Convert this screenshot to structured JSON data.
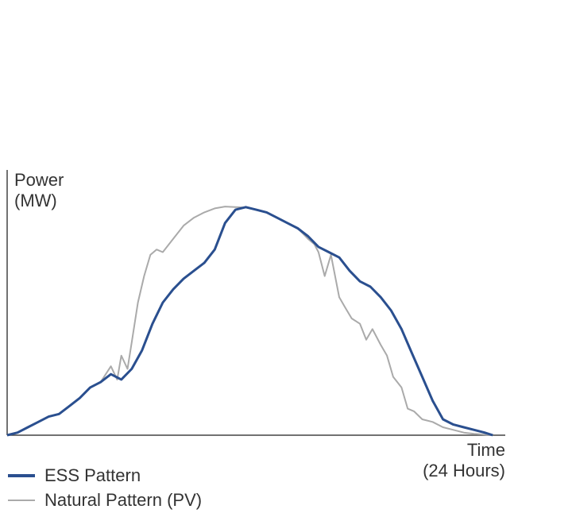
{
  "chart_data": {
    "type": "line",
    "ylabel_line1": "Power",
    "ylabel_line2": "(MW)",
    "xlabel_line1": "Time",
    "xlabel_line2": "(24 Hours)",
    "xlim": [
      0,
      24
    ],
    "ylim": [
      0,
      1
    ],
    "grid": false,
    "legend_position": "bottom-left",
    "series": [
      {
        "name": "ESS Pattern",
        "color": "#2a4f8f",
        "x": [
          0,
          0.5,
          1,
          1.5,
          2,
          2.5,
          3,
          3.5,
          4,
          4.5,
          5,
          5.5,
          6,
          6.5,
          7,
          7.5,
          8,
          8.5,
          9,
          9.5,
          10,
          10.5,
          11,
          11.5,
          12,
          12.5,
          13,
          13.5,
          14,
          14.5,
          15,
          15.5,
          16,
          16.5,
          17,
          17.5,
          18,
          18.5,
          19,
          19.5,
          20,
          20.5,
          21,
          21.5,
          22,
          22.5,
          23,
          23.4
        ],
        "y": [
          0.0,
          0.01,
          0.03,
          0.05,
          0.07,
          0.08,
          0.11,
          0.14,
          0.18,
          0.2,
          0.23,
          0.21,
          0.25,
          0.32,
          0.42,
          0.5,
          0.55,
          0.59,
          0.62,
          0.65,
          0.7,
          0.8,
          0.85,
          0.86,
          0.85,
          0.84,
          0.82,
          0.8,
          0.78,
          0.75,
          0.71,
          0.69,
          0.67,
          0.62,
          0.58,
          0.56,
          0.52,
          0.47,
          0.4,
          0.31,
          0.22,
          0.13,
          0.06,
          0.04,
          0.03,
          0.02,
          0.01,
          0.0
        ]
      },
      {
        "name": "Natural Pattern (PV)",
        "color": "#aaaaaa",
        "x": [
          0,
          0.5,
          1,
          1.5,
          2,
          2.5,
          3,
          3.5,
          4,
          4.5,
          5,
          5.3,
          5.5,
          5.8,
          6,
          6.3,
          6.6,
          6.9,
          7.2,
          7.5,
          8,
          8.5,
          9,
          9.5,
          10,
          10.5,
          11,
          11.5,
          12,
          12.5,
          13,
          13.5,
          14,
          14.5,
          14.8,
          15,
          15.3,
          15.6,
          16,
          16.3,
          16.6,
          17,
          17.3,
          17.6,
          18,
          18.3,
          18.6,
          19,
          19.3,
          19.6,
          20,
          20.5,
          21,
          21.5,
          22,
          22.5,
          23,
          23.4
        ],
        "y": [
          0.0,
          0.01,
          0.03,
          0.05,
          0.07,
          0.08,
          0.11,
          0.14,
          0.18,
          0.2,
          0.26,
          0.21,
          0.3,
          0.25,
          0.35,
          0.5,
          0.6,
          0.68,
          0.7,
          0.69,
          0.74,
          0.79,
          0.82,
          0.84,
          0.855,
          0.862,
          0.86,
          0.858,
          0.85,
          0.84,
          0.82,
          0.8,
          0.78,
          0.74,
          0.72,
          0.69,
          0.6,
          0.68,
          0.52,
          0.48,
          0.44,
          0.42,
          0.36,
          0.4,
          0.34,
          0.3,
          0.22,
          0.18,
          0.1,
          0.09,
          0.06,
          0.05,
          0.03,
          0.02,
          0.01,
          0.005,
          0.002,
          0.0
        ]
      }
    ]
  }
}
